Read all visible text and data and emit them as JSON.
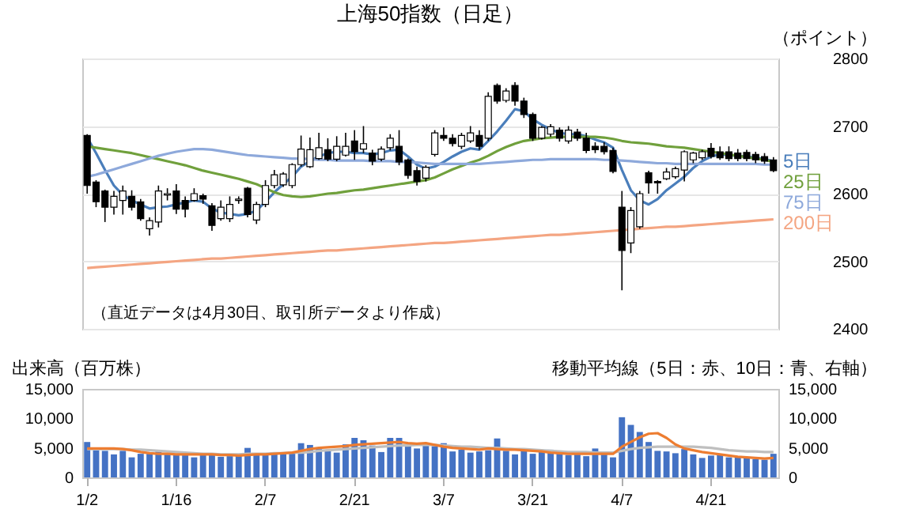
{
  "chart_data": [
    {
      "type": "candlestick",
      "title": "上海50指数（日足）",
      "ylabel": "（ポイント）",
      "annotations": [
        "（直近データは4月30日、取引所データより作成）"
      ],
      "categories": [
        null,
        null,
        null,
        null,
        null,
        null,
        null,
        null,
        null,
        null,
        null,
        null,
        null,
        null,
        null,
        null,
        null,
        null,
        null,
        null,
        null,
        null,
        null,
        null,
        null,
        null,
        null,
        null,
        null,
        null,
        null,
        null,
        null,
        null,
        null,
        null,
        null,
        null,
        null,
        null,
        null,
        null,
        null,
        null,
        null,
        null,
        null,
        null,
        null,
        null,
        null,
        null,
        null,
        null,
        null,
        null,
        null,
        null,
        null,
        null,
        null,
        null,
        null,
        null,
        null,
        null,
        null,
        null,
        null,
        null,
        null,
        null,
        null,
        null,
        null,
        null,
        null,
        null
      ],
      "ohlc": [
        [
          2686,
          2688,
          2600,
          2612
        ],
        [
          2617,
          2620,
          2580,
          2588
        ],
        [
          2604,
          2606,
          2558,
          2580
        ],
        [
          2580,
          2604,
          2569,
          2596
        ],
        [
          2590,
          2612,
          2569,
          2604
        ],
        [
          2596,
          2605,
          2575,
          2580
        ],
        [
          2588,
          2592,
          2560,
          2563
        ],
        [
          2548,
          2565,
          2538,
          2560
        ],
        [
          2558,
          2612,
          2550,
          2604
        ],
        [
          2598,
          2608,
          2590,
          2600
        ],
        [
          2604,
          2614,
          2570,
          2577
        ],
        [
          2590,
          2596,
          2565,
          2577
        ],
        [
          2590,
          2608,
          2588,
          2600
        ],
        [
          2597,
          2600,
          2585,
          2592
        ],
        [
          2582,
          2586,
          2545,
          2553
        ],
        [
          2563,
          2590,
          2560,
          2580
        ],
        [
          2563,
          2596,
          2558,
          2584
        ],
        [
          2590,
          2596,
          2585,
          2592
        ],
        [
          2608,
          2610,
          2565,
          2569
        ],
        [
          2561,
          2588,
          2555,
          2584
        ],
        [
          2584,
          2620,
          2580,
          2612
        ],
        [
          2612,
          2635,
          2608,
          2628
        ],
        [
          2613,
          2632,
          2610,
          2629
        ],
        [
          2612,
          2645,
          2608,
          2643
        ],
        [
          2643,
          2686,
          2640,
          2666
        ],
        [
          2640,
          2683,
          2638,
          2665
        ],
        [
          2652,
          2690,
          2650,
          2668
        ],
        [
          2665,
          2682,
          2648,
          2651
        ],
        [
          2651,
          2685,
          2648,
          2670
        ],
        [
          2657,
          2690,
          2655,
          2670
        ],
        [
          2678,
          2694,
          2650,
          2662
        ],
        [
          2666,
          2700,
          2660,
          2674
        ],
        [
          2660,
          2665,
          2642,
          2648
        ],
        [
          2651,
          2670,
          2648,
          2666
        ],
        [
          2668,
          2688,
          2664,
          2682
        ],
        [
          2670,
          2694,
          2642,
          2647
        ],
        [
          2650,
          2652,
          2622,
          2627
        ],
        [
          2634,
          2640,
          2612,
          2618
        ],
        [
          2623,
          2642,
          2618,
          2639
        ],
        [
          2658,
          2694,
          2655,
          2690
        ],
        [
          2686,
          2698,
          2678,
          2682
        ],
        [
          2682,
          2688,
          2670,
          2674
        ],
        [
          2670,
          2690,
          2666,
          2686
        ],
        [
          2678,
          2700,
          2675,
          2690
        ],
        [
          2686,
          2694,
          2665,
          2670
        ],
        [
          2682,
          2750,
          2678,
          2744
        ],
        [
          2760,
          2763,
          2733,
          2737
        ],
        [
          2738,
          2756,
          2735,
          2752
        ],
        [
          2760,
          2765,
          2730,
          2737
        ],
        [
          2737,
          2742,
          2712,
          2717
        ],
        [
          2717,
          2720,
          2678,
          2682
        ],
        [
          2682,
          2700,
          2680,
          2698
        ],
        [
          2688,
          2703,
          2684,
          2699
        ],
        [
          2694,
          2698,
          2677,
          2682
        ],
        [
          2678,
          2700,
          2674,
          2694
        ],
        [
          2691,
          2696,
          2678,
          2682
        ],
        [
          2682,
          2690,
          2660,
          2664
        ],
        [
          2670,
          2676,
          2660,
          2665
        ],
        [
          2670,
          2676,
          2658,
          2662
        ],
        [
          2664,
          2668,
          2630,
          2633
        ],
        [
          2580,
          2604,
          2457,
          2516
        ],
        [
          2527,
          2580,
          2512,
          2575
        ],
        [
          2551,
          2604,
          2548,
          2600
        ],
        [
          2631,
          2634,
          2600,
          2616
        ],
        [
          2618,
          2620,
          2600,
          2616
        ],
        [
          2622,
          2638,
          2620,
          2632
        ],
        [
          2625,
          2640,
          2622,
          2637
        ],
        [
          2635,
          2664,
          2618,
          2662
        ],
        [
          2650,
          2662,
          2645,
          2660
        ],
        [
          2653,
          2665,
          2650,
          2662
        ],
        [
          2667,
          2675,
          2652,
          2655
        ],
        [
          2662,
          2670,
          2650,
          2653
        ],
        [
          2662,
          2670,
          2648,
          2652
        ],
        [
          2660,
          2666,
          2648,
          2652
        ],
        [
          2661,
          2665,
          2648,
          2652
        ],
        [
          2658,
          2662,
          2645,
          2650
        ],
        [
          2655,
          2660,
          2644,
          2648
        ],
        [
          2650,
          2654,
          2632,
          2634
        ]
      ],
      "series": [
        {
          "type": "line",
          "name": "5日",
          "color": "#4a7ebb",
          "values": [
            2683,
            2660,
            2635,
            2612,
            2598,
            2590,
            2584,
            2578,
            2580,
            2581,
            2584,
            2587,
            2590,
            2588,
            2578,
            2572,
            2570,
            2568,
            2570,
            2575,
            2588,
            2602,
            2614,
            2625,
            2640,
            2648,
            2655,
            2660,
            2662,
            2662,
            2660,
            2660,
            2658,
            2660,
            2664,
            2665,
            2655,
            2643,
            2637,
            2640,
            2647,
            2655,
            2662,
            2667,
            2665,
            2678,
            2692,
            2708,
            2725,
            2722,
            2710,
            2702,
            2695,
            2690,
            2688,
            2688,
            2685,
            2680,
            2676,
            2668,
            2635,
            2605,
            2590,
            2584,
            2592,
            2605,
            2615,
            2625,
            2638,
            2648,
            2655,
            2658,
            2657,
            2656,
            2655,
            2653,
            2651,
            2648
          ]
        },
        {
          "type": "line",
          "name": "25日",
          "color": "#70a03c",
          "values": [
            2670,
            2668,
            2666,
            2664,
            2662,
            2660,
            2657,
            2654,
            2651,
            2648,
            2645,
            2642,
            2638,
            2634,
            2631,
            2628,
            2625,
            2622,
            2618,
            2614,
            2608,
            2602,
            2598,
            2596,
            2595,
            2596,
            2598,
            2600,
            2601,
            2603,
            2605,
            2606,
            2608,
            2610,
            2612,
            2614,
            2616,
            2618,
            2620,
            2624,
            2630,
            2636,
            2641,
            2646,
            2650,
            2656,
            2663,
            2669,
            2674,
            2678,
            2680,
            2682,
            2683,
            2684,
            2684,
            2684,
            2684,
            2684,
            2683,
            2681,
            2678,
            2676,
            2675,
            2674,
            2672,
            2670,
            2669,
            2668,
            2666,
            2664,
            2662,
            2660,
            2658,
            2656,
            2654,
            2652,
            2650,
            2647
          ]
        },
        {
          "type": "line",
          "name": "75日",
          "color": "#8ea9db",
          "values": [
            2625,
            2628,
            2632,
            2636,
            2640,
            2644,
            2648,
            2652,
            2656,
            2659,
            2662,
            2664,
            2666,
            2666,
            2665,
            2663,
            2661,
            2659,
            2657,
            2656,
            2655,
            2654,
            2653,
            2652,
            2652,
            2651,
            2650,
            2650,
            2649,
            2649,
            2649,
            2649,
            2648,
            2648,
            2648,
            2647,
            2647,
            2646,
            2645,
            2644,
            2644,
            2644,
            2644,
            2644,
            2644,
            2645,
            2646,
            2647,
            2648,
            2649,
            2650,
            2650,
            2651,
            2651,
            2651,
            2651,
            2651,
            2651,
            2650,
            2650,
            2649,
            2648,
            2647,
            2646,
            2645,
            2645,
            2644,
            2644,
            2644,
            2644,
            2644,
            2644,
            2644,
            2644,
            2644,
            2644,
            2643,
            2643
          ]
        },
        {
          "type": "line",
          "name": "200日",
          "color": "#f4a582",
          "values": [
            2490,
            2491,
            2492,
            2493,
            2494,
            2495,
            2496,
            2497,
            2498,
            2499,
            2500,
            2501,
            2502,
            2503,
            2504,
            2504,
            2505,
            2506,
            2507,
            2508,
            2509,
            2510,
            2511,
            2512,
            2513,
            2514,
            2515,
            2516,
            2516,
            2517,
            2518,
            2519,
            2520,
            2521,
            2522,
            2523,
            2524,
            2525,
            2526,
            2527,
            2527,
            2528,
            2529,
            2530,
            2531,
            2532,
            2533,
            2534,
            2535,
            2536,
            2537,
            2538,
            2539,
            2539,
            2540,
            2541,
            2542,
            2543,
            2544,
            2545,
            2546,
            2547,
            2548,
            2549,
            2550,
            2551,
            2551,
            2552,
            2553,
            2554,
            2555,
            2556,
            2557,
            2558,
            2559,
            2560,
            2561,
            2562
          ]
        }
      ],
      "ylim": [
        2400,
        2800
      ],
      "yticks": [
        2400,
        2500,
        2600,
        2700,
        2800
      ],
      "grid": "y",
      "tick_labels": "y"
    },
    {
      "type": "bar",
      "ylabel": "出来高（百万株）",
      "y2label": "移動平均線（5日：赤、10日：青、右軸）",
      "categories": [
        "1/2",
        null,
        null,
        null,
        null,
        null,
        null,
        null,
        null,
        null,
        "1/16",
        null,
        null,
        null,
        null,
        null,
        null,
        null,
        null,
        null,
        "2/7",
        null,
        null,
        null,
        null,
        null,
        null,
        null,
        null,
        null,
        "2/21",
        null,
        null,
        null,
        null,
        null,
        null,
        null,
        null,
        null,
        "3/7",
        null,
        null,
        null,
        null,
        null,
        null,
        null,
        null,
        null,
        "3/21",
        null,
        null,
        null,
        null,
        null,
        null,
        null,
        null,
        null,
        "4/7",
        null,
        null,
        null,
        null,
        null,
        null,
        null,
        null,
        null,
        "4/21",
        null,
        null,
        null,
        null,
        null,
        null,
        null
      ],
      "series": [
        {
          "type": "bar",
          "color": "#4472c4",
          "values": [
            6000,
            4600,
            4500,
            3900,
            4500,
            3400,
            4000,
            4000,
            4400,
            3900,
            4000,
            4000,
            3400,
            3800,
            4000,
            3500,
            3600,
            3900,
            5000,
            3800,
            4000,
            4000,
            4100,
            4200,
            5800,
            5500,
            4900,
            4500,
            4200,
            5600,
            6700,
            6300,
            5400,
            4300,
            6700,
            6700,
            5400,
            4900,
            5500,
            5300,
            5800,
            4400,
            4700,
            4200,
            4400,
            4600,
            6600,
            4500,
            3900,
            4600,
            4000,
            4300,
            4700,
            4200,
            3800,
            4200,
            3600,
            4900,
            4100,
            3400,
            10200,
            8900,
            7700,
            6000,
            4500,
            4400,
            4100,
            4800,
            3900,
            3300,
            3700,
            3800,
            3400,
            3500,
            3300,
            3100,
            3000,
            4000
          ]
        },
        {
          "type": "line",
          "axis": "y2",
          "color": "#ed7d31",
          "values": [
            4900,
            4900,
            4900,
            4900,
            4800,
            4600,
            4300,
            4100,
            4000,
            4000,
            3900,
            3900,
            3900,
            3900,
            3900,
            3800,
            3800,
            3700,
            3800,
            3900,
            3900,
            4000,
            4100,
            4200,
            4500,
            4800,
            5000,
            5100,
            5200,
            5300,
            5500,
            5600,
            5700,
            5800,
            5900,
            6000,
            5800,
            5700,
            5800,
            5500,
            5200,
            5000,
            4900,
            4800,
            4700,
            4900,
            4800,
            4700,
            4700,
            4600,
            4500,
            4400,
            4200,
            4100,
            4000,
            4000,
            4000,
            4000,
            4000,
            4000,
            5200,
            6000,
            6800,
            7400,
            7500,
            6700,
            5600,
            4900,
            4600,
            4300,
            4100,
            3900,
            3700,
            3500,
            3400,
            3300,
            3200,
            3300
          ]
        },
        {
          "type": "line",
          "axis": "y2",
          "color": "#bfbfbf",
          "values": [
            4800,
            4800,
            4800,
            4800,
            4800,
            4700,
            4700,
            4600,
            4500,
            4400,
            4300,
            4200,
            4100,
            4000,
            4000,
            3900,
            3900,
            3900,
            4000,
            4000,
            4000,
            4100,
            4100,
            4200,
            4200,
            4300,
            4500,
            4600,
            4700,
            4800,
            4900,
            5000,
            5100,
            5200,
            5300,
            5400,
            5400,
            5500,
            5500,
            5500,
            5400,
            5300,
            5200,
            5200,
            5100,
            5000,
            5000,
            4900,
            4800,
            4800,
            4700,
            4600,
            4500,
            4400,
            4300,
            4300,
            4300,
            4200,
            4200,
            4200,
            4500,
            4800,
            5000,
            5100,
            5200,
            5200,
            5200,
            5200,
            5200,
            5100,
            5000,
            4800,
            4600,
            4500,
            4400,
            4400,
            4300,
            4300
          ]
        }
      ],
      "ylim": [
        0,
        15000
      ],
      "yticks": [
        0,
        {
          "value": 5000,
          "label": "5,000"
        },
        {
          "value": 10000,
          "label": "10,000"
        },
        {
          "value": 15000,
          "label": "15,000"
        }
      ],
      "y2lim": [
        0,
        15000
      ],
      "y2ticks": [
        0,
        {
          "value": 5000,
          "label": "5,000"
        },
        {
          "value": 10000,
          "label": "10,000"
        },
        {
          "value": 15000,
          "label": "15,000"
        }
      ]
    }
  ]
}
